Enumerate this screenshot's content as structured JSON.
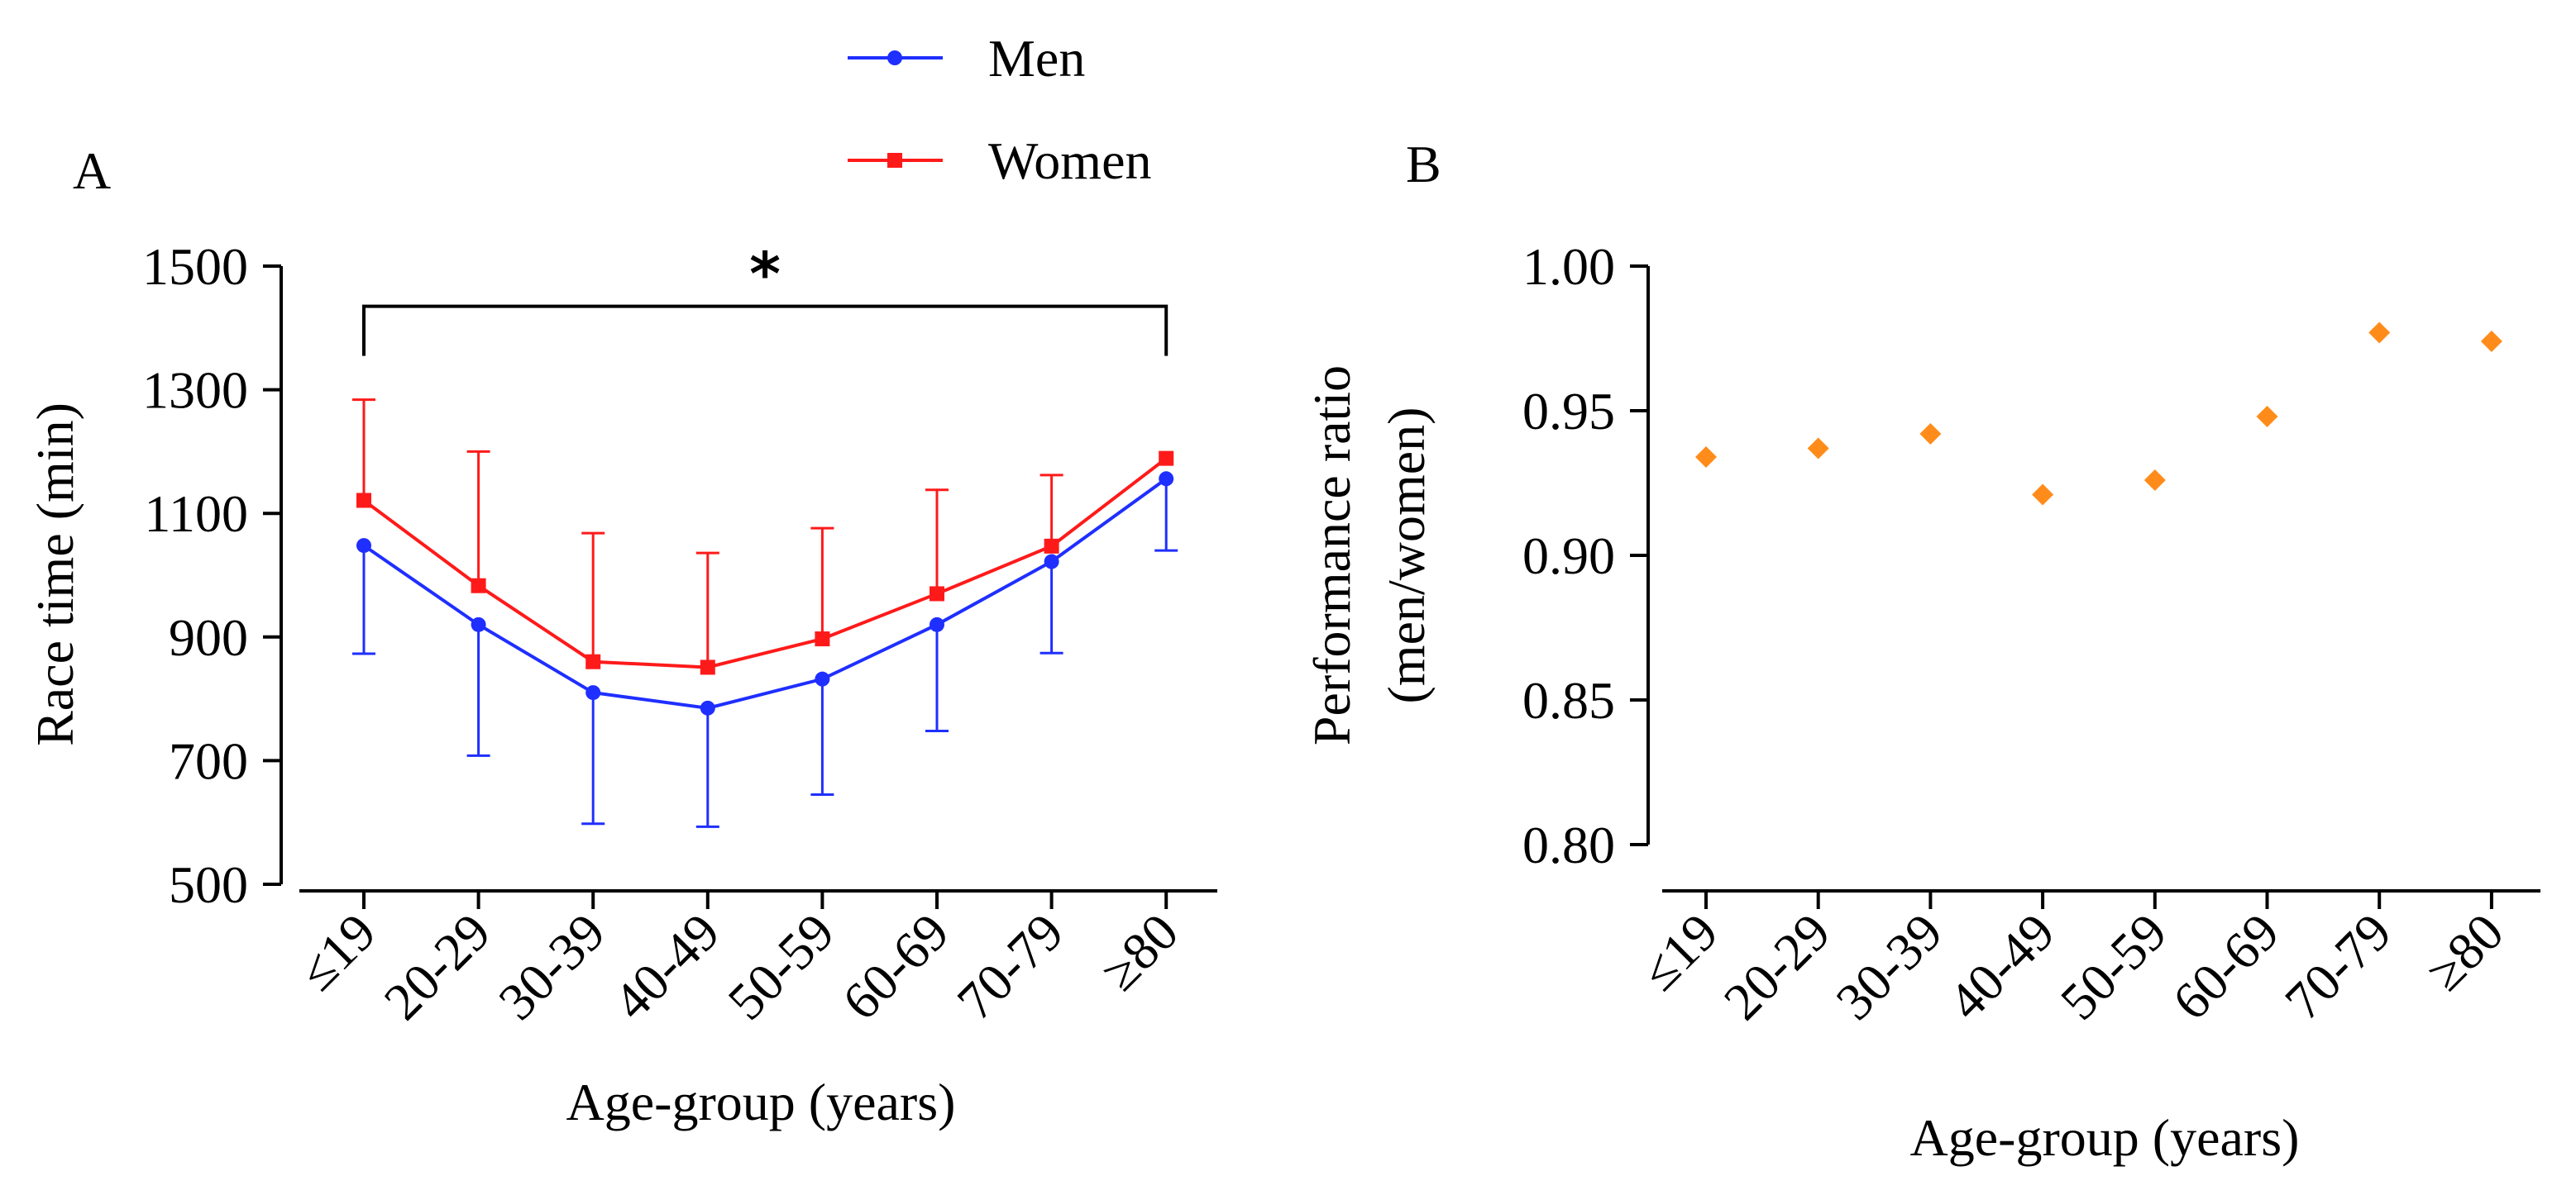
{
  "legend": {
    "entries": [
      {
        "label": "Men",
        "color": "#1f2fff",
        "marker": "circle"
      },
      {
        "label": "Women",
        "color": "#ff1a1a",
        "marker": "square"
      }
    ]
  },
  "chart_data": [
    {
      "panel_label": "A",
      "type": "line",
      "xlabel": "Age-group (years)",
      "ylabel": "Race time (min)",
      "ylim": [
        500,
        1500
      ],
      "yticks": [
        500,
        700,
        900,
        1100,
        1300,
        1500
      ],
      "yticks_text": [
        "500",
        "700",
        "900",
        "1100",
        "1300",
        "1500"
      ],
      "categories": [
        "≤19",
        "20-29",
        "30-39",
        "40-49",
        "50-59",
        "60-69",
        "70-79",
        "≥80"
      ],
      "series": [
        {
          "name": "Men",
          "color": "#1f2fff",
          "marker": "circle",
          "values": [
            1048,
            920,
            810,
            785,
            832,
            920,
            1022,
            1156
          ],
          "error_minus": [
            175,
            212,
            212,
            192,
            187,
            172,
            148,
            116
          ]
        },
        {
          "name": "Women",
          "color": "#ff1a1a",
          "marker": "square",
          "values": [
            1121,
            983,
            860,
            851,
            897,
            970,
            1047,
            1189
          ],
          "error_plus": [
            163,
            217,
            208,
            185,
            179,
            168,
            115,
            0
          ]
        }
      ],
      "annotation": {
        "text": "*",
        "from_category": 0,
        "to_category": 7,
        "bracket_y": 1435
      }
    },
    {
      "panel_label": "B",
      "type": "scatter",
      "xlabel": "Age-group (years)",
      "ylabel_line1": "Performance ratio",
      "ylabel_line2": "(men/women)",
      "ylim": [
        0.8,
        1.0
      ],
      "yticks": [
        0.8,
        0.85,
        0.9,
        0.95,
        1.0
      ],
      "yticks_text": [
        "0.80",
        "0.85",
        "0.90",
        "0.95",
        "1.00"
      ],
      "categories": [
        "≤19",
        "20-29",
        "30-39",
        "40-49",
        "50-59",
        "60-69",
        "70-79",
        "≥80"
      ],
      "series": [
        {
          "name": "Performance ratio",
          "color": "#ff8c1a",
          "marker": "diamond",
          "values": [
            0.934,
            0.937,
            0.942,
            0.921,
            0.926,
            0.948,
            0.977,
            0.974
          ]
        }
      ]
    }
  ]
}
